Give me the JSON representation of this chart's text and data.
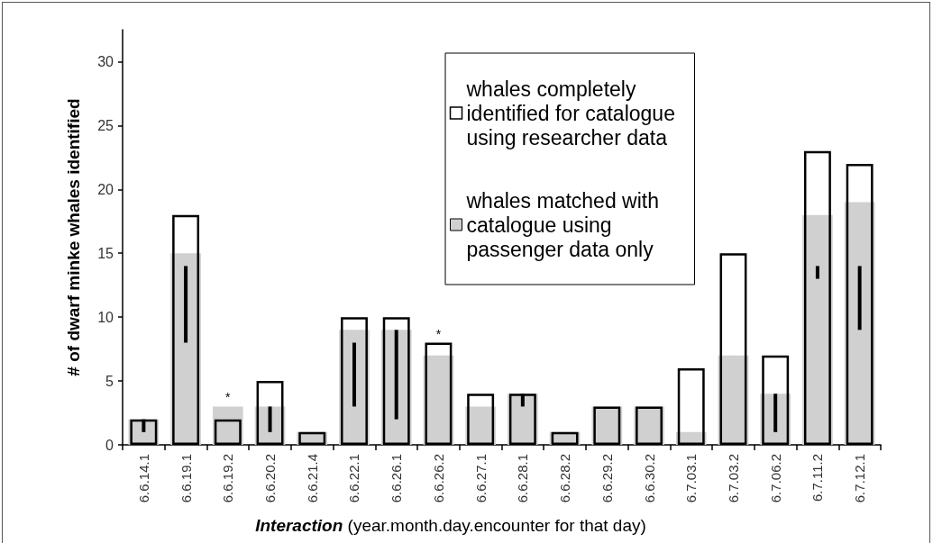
{
  "chart_data": {
    "type": "bar",
    "xlabel": "Interaction (year.month.day.encounter for that day)",
    "ylabel": "# of dwarf minke whales identified",
    "categories": [
      "6.6.14.1",
      "6.6.19.1",
      "6.6.19.2",
      "6.6.20.2",
      "6.6.21.4",
      "6.6.22.1",
      "6.6.26.1",
      "6.6.26.2",
      "6.6.27.1",
      "6.6.28.1",
      "6.6.28.2",
      "6.6.29.2",
      "6.6.30.2",
      "6.7.03.1",
      "6.7.03.2",
      "6.7.06.2",
      "6.7.11.2",
      "6.7.12.1"
    ],
    "series": [
      {
        "name": "whales completely identified for catalogue using researcher data",
        "color": "#000000",
        "values": [
          2,
          18,
          2,
          5,
          1,
          10,
          10,
          8,
          4,
          4,
          1,
          3,
          3,
          6,
          15,
          7,
          23,
          22
        ]
      },
      {
        "name": "whales matched with catalogue using passenger data only",
        "color": "#d0d0d0",
        "values": [
          2,
          15,
          3,
          3,
          1,
          9,
          9,
          7,
          3,
          4,
          1,
          3,
          3,
          1,
          7,
          4,
          18,
          19
        ],
        "errors": [
          [
            1,
            2
          ],
          [
            8,
            14
          ],
          null,
          [
            1,
            3
          ],
          null,
          [
            3,
            8
          ],
          [
            2,
            9
          ],
          null,
          null,
          [
            3,
            4
          ],
          null,
          null,
          null,
          null,
          null,
          [
            1,
            4
          ],
          [
            13,
            14
          ],
          [
            9,
            14
          ]
        ]
      }
    ],
    "ylim": [
      0,
      32.5
    ],
    "yticks": [
      0,
      5,
      10,
      15,
      20,
      25,
      30
    ],
    "grid": false,
    "legend": "top right",
    "annotations": [
      {
        "text": "*",
        "x": "6.6.19.2",
        "y": 3
      },
      {
        "text": "*",
        "x": "6.6.26.2",
        "y": 8
      }
    ]
  }
}
